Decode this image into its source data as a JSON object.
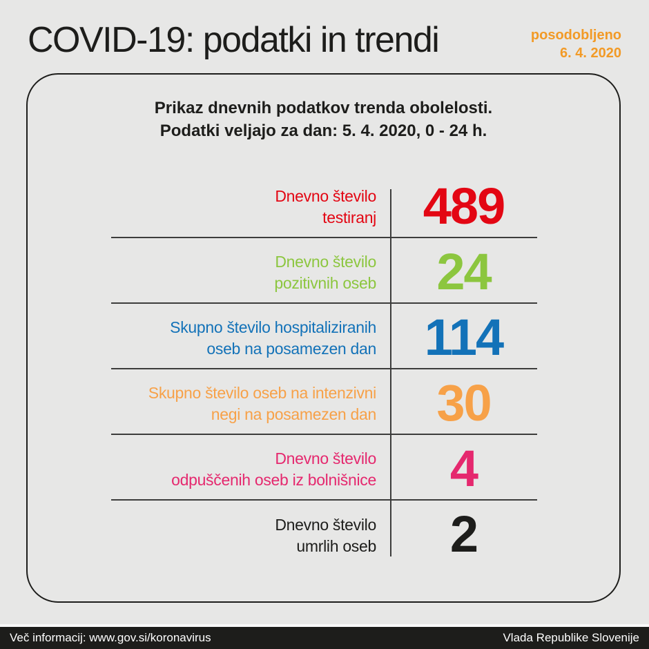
{
  "page": {
    "title": "COVID-19: podatki in trendi",
    "updated_label": "posodobljeno",
    "updated_date": "6. 4. 2020"
  },
  "panel": {
    "header_line1": "Prikaz dnevnih podatkov trenda obolelosti.",
    "header_line2": "Podatki veljajo za dan: 5. 4. 2020, 0 - 24 h.",
    "rows": [
      {
        "label_line1": "Dnevno število",
        "label_line2": "testiranj",
        "value": "489",
        "color": "#e30613"
      },
      {
        "label_line1": "Dnevno število",
        "label_line2": "pozitivnih oseb",
        "value": "24",
        "color": "#8cc63f"
      },
      {
        "label_line1": "Skupno število hospitaliziranih",
        "label_line2": "oseb na posamezen dan",
        "value": "114",
        "color": "#1372b8"
      },
      {
        "label_line1": "Skupno število oseb na intenzivni",
        "label_line2": "negi na posamezen dan",
        "value": "30",
        "color": "#f7a148"
      },
      {
        "label_line1": "Dnevno število",
        "label_line2": "odpuščenih oseb iz bolnišnice",
        "value": "4",
        "color": "#e5286e"
      },
      {
        "label_line1": "Dnevno število",
        "label_line2": "umrlih oseb",
        "value": "2",
        "color": "#1d1d1b"
      }
    ]
  },
  "footer": {
    "left": "Več informacij: www.gov.si/koronavirus",
    "right": "Vlada Republike Slovenije"
  },
  "colors": {
    "background": "#e7e7e6",
    "text_dark": "#1d1d1b",
    "updated_orange": "#f29a26",
    "divider": "#3c3c3b",
    "footer_background": "#1d1d1b",
    "footer_text": "#ffffff"
  },
  "chart_data": {
    "type": "table",
    "title": "COVID-19: podatki in trendi",
    "subtitle_lines": [
      "Prikaz dnevnih podatkov trenda obolelosti.",
      "Podatki veljajo za dan: 5. 4. 2020, 0 - 24 h."
    ],
    "updated": "6. 4. 2020",
    "categories": [
      "Dnevno število testiranj",
      "Dnevno število pozitivnih oseb",
      "Skupno število hospitaliziranih oseb na posamezen dan",
      "Skupno število oseb na intenzivni negi na posamezen dan",
      "Dnevno število odpuščenih oseb iz bolnišnice",
      "Dnevno število umrlih oseb"
    ],
    "values": [
      489,
      24,
      114,
      30,
      4,
      2
    ],
    "value_colors": [
      "#e30613",
      "#8cc63f",
      "#1372b8",
      "#f7a148",
      "#e5286e",
      "#1d1d1b"
    ],
    "legend_position": "none",
    "grid": false
  }
}
